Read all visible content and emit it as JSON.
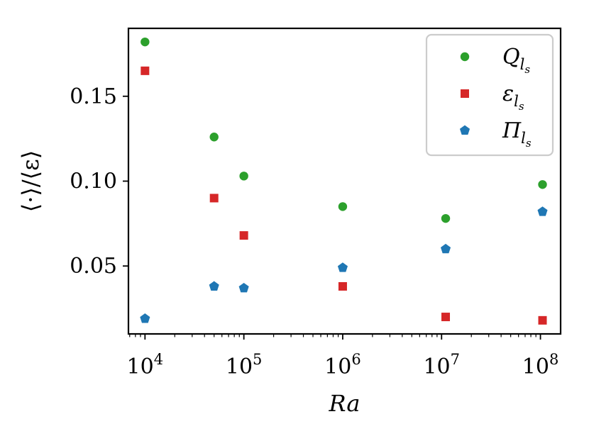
{
  "chart_data": {
    "type": "scatter",
    "xlabel": "Ra",
    "ylabel": "⟨·⟩/⟨ε⟩",
    "xscale": "log",
    "xlim": [
      6800,
      160000000
    ],
    "ylim": [
      0.01,
      0.19
    ],
    "x_ticks": [
      {
        "value": 10000,
        "base": "10",
        "exp": "4"
      },
      {
        "value": 100000,
        "base": "10",
        "exp": "5"
      },
      {
        "value": 1000000,
        "base": "10",
        "exp": "6"
      },
      {
        "value": 10000000,
        "base": "10",
        "exp": "7"
      },
      {
        "value": 100000000,
        "base": "10",
        "exp": "8"
      }
    ],
    "y_ticks": [
      {
        "value": 0.05,
        "label": "0.05"
      },
      {
        "value": 0.1,
        "label": "0.10"
      },
      {
        "value": 0.15,
        "label": "0.15"
      }
    ],
    "legend_position": "top-right",
    "grid": false,
    "series": [
      {
        "name": "Q",
        "sub": "l",
        "subsub": "s",
        "color": "#2ca02c",
        "marker": "circle",
        "x": [
          10000,
          50000,
          100000,
          1000000,
          11000000,
          105000000
        ],
        "y": [
          0.182,
          0.126,
          0.103,
          0.085,
          0.078,
          0.098
        ]
      },
      {
        "name": "ε",
        "sub": "l",
        "subsub": "s",
        "color": "#d62728",
        "marker": "square",
        "x": [
          10000,
          50000,
          100000,
          1000000,
          11000000,
          105000000
        ],
        "y": [
          0.165,
          0.09,
          0.068,
          0.038,
          0.02,
          0.018
        ]
      },
      {
        "name": "Π",
        "sub": "l",
        "subsub": "s",
        "color": "#1f77b4",
        "marker": "pentagon",
        "x": [
          10000,
          50000,
          100000,
          1000000,
          11000000,
          105000000
        ],
        "y": [
          0.019,
          0.038,
          0.037,
          0.049,
          0.06,
          0.082
        ]
      }
    ]
  }
}
